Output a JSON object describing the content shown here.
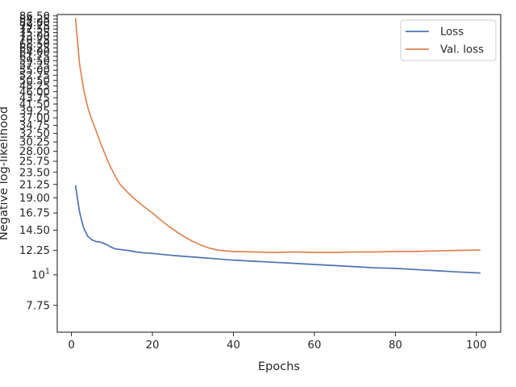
{
  "chart_data": {
    "type": "line",
    "xlabel": "Epochs",
    "ylabel": "Negative log-likelihood",
    "x_scale": "linear",
    "y_scale": "log",
    "xlim": [
      -3.5,
      106
    ],
    "ylim": [
      6.2,
      87.5
    ],
    "x_ticks": [
      0,
      20,
      40,
      60,
      80,
      100
    ],
    "x_tick_labels": [
      "0",
      "20",
      "40",
      "60",
      "80",
      "100"
    ],
    "y_ticks": [
      7.75,
      10,
      12.25,
      14.5,
      16.75,
      19.0,
      21.25,
      23.5,
      25.75,
      28.0,
      30.25,
      32.5,
      34.75,
      37.0,
      39.25,
      41.5,
      43.75,
      46.0,
      48.25,
      50.5,
      52.75,
      55.0,
      57.25,
      59.5,
      61.75,
      64.0,
      66.25,
      68.5,
      70.75,
      73.0,
      75.25,
      77.5,
      79.75,
      82.0,
      84.25,
      86.5
    ],
    "y_tick_labels": [
      "7.75",
      "10^1",
      "12.25",
      "14.50",
      "16.75",
      "19.00",
      "21.25",
      "23.50",
      "25.75",
      "28.00",
      "30.25",
      "32.50",
      "34.75",
      "37.00",
      "39.25",
      "41.50",
      "43.75",
      "46.00",
      "48.25",
      "50.50",
      "52.75",
      "55.00",
      "57.25",
      "59.50",
      "61.75",
      "64.00",
      "66.25",
      "68.50",
      "70.75",
      "73.00",
      "75.25",
      "77.50",
      "79.75",
      "82.00",
      "84.25",
      "86.50"
    ],
    "grid": false,
    "legend_position": "top-right",
    "series": [
      {
        "name": "Loss",
        "color": "#4c72b0",
        "x": [
          1,
          2,
          3,
          4,
          5,
          6,
          7,
          8,
          9,
          10,
          11,
          12,
          14,
          16,
          18,
          20,
          25,
          30,
          35,
          40,
          45,
          50,
          55,
          60,
          65,
          70,
          75,
          80,
          85,
          90,
          95,
          101
        ],
        "y": [
          21.1,
          16.9,
          14.8,
          13.8,
          13.4,
          13.2,
          13.15,
          13.0,
          12.8,
          12.55,
          12.4,
          12.35,
          12.25,
          12.1,
          12.0,
          11.95,
          11.75,
          11.6,
          11.45,
          11.3,
          11.2,
          11.1,
          11.0,
          10.9,
          10.8,
          10.7,
          10.6,
          10.55,
          10.45,
          10.35,
          10.25,
          10.15
        ]
      },
      {
        "name": "Val. loss",
        "color": "#dd8452",
        "x": [
          1,
          2,
          3,
          4,
          5,
          6,
          7,
          8,
          9,
          10,
          11,
          12,
          14,
          16,
          18,
          20,
          22,
          24,
          26,
          28,
          30,
          32,
          34,
          36,
          38,
          40,
          45,
          50,
          55,
          60,
          65,
          70,
          75,
          80,
          85,
          90,
          95,
          101
        ],
        "y": [
          85.0,
          58.0,
          47.0,
          40.5,
          36.5,
          33.5,
          30.5,
          28.0,
          25.75,
          24.0,
          22.5,
          21.25,
          19.8,
          18.6,
          17.6,
          16.75,
          15.8,
          15.0,
          14.3,
          13.7,
          13.2,
          12.8,
          12.5,
          12.3,
          12.2,
          12.15,
          12.1,
          12.05,
          12.1,
          12.05,
          12.05,
          12.1,
          12.1,
          12.15,
          12.15,
          12.2,
          12.25,
          12.3
        ]
      }
    ]
  }
}
